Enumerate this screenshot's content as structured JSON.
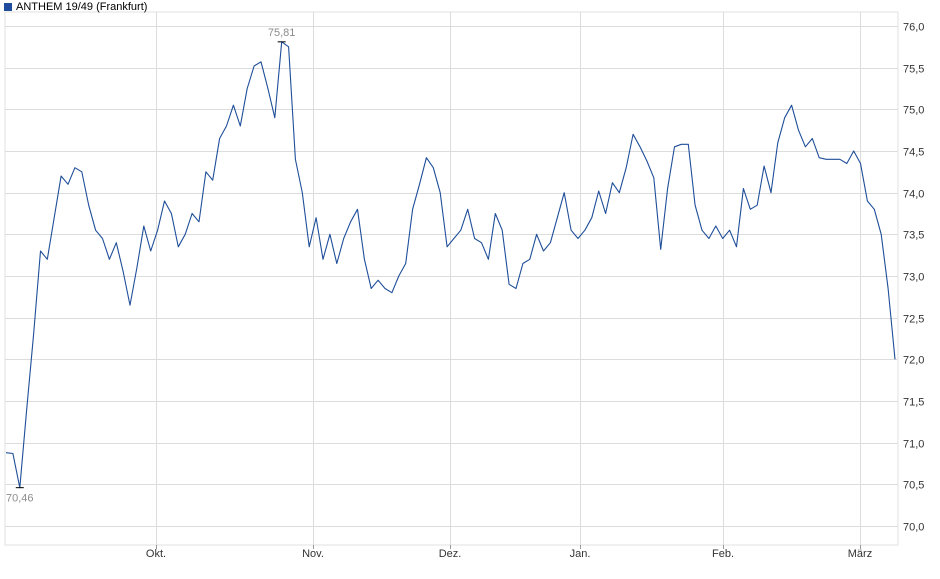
{
  "colors": {
    "line": "#1f4e99",
    "legend_swatch": "#1f4a9e",
    "grid": "#dcdcdc",
    "annotation": "#8c8c8c"
  },
  "legend": {
    "label": "ANTHEM 19/49 (Frankfurt)",
    "placement": "top-left"
  },
  "chart_data": {
    "type": "line",
    "title": "",
    "xlabel": "",
    "ylabel": "",
    "ylim": [
      70.0,
      76.0
    ],
    "y_ticks": [
      "70,0",
      "70,5",
      "71,0",
      "71,5",
      "72,0",
      "72,5",
      "73,0",
      "73,5",
      "74,0",
      "74,5",
      "75,0",
      "75,5",
      "76,0"
    ],
    "x_ticks": [
      "Okt.",
      "Nov.",
      "Dez.",
      "Jan.",
      "Feb.",
      "März"
    ],
    "grid": true,
    "y_axis_side": "right",
    "series": [
      {
        "name": "ANTHEM 19/49 (Frankfurt)",
        "values": [
          70.88,
          70.87,
          70.46,
          71.4,
          72.3,
          73.3,
          73.2,
          73.7,
          74.2,
          74.1,
          74.3,
          74.25,
          73.85,
          73.55,
          73.45,
          73.2,
          73.4,
          73.05,
          72.65,
          73.1,
          73.6,
          73.3,
          73.55,
          73.9,
          73.75,
          73.35,
          73.5,
          73.75,
          73.65,
          74.25,
          74.15,
          74.65,
          74.8,
          75.05,
          74.8,
          75.25,
          75.52,
          75.57,
          75.25,
          74.9,
          75.81,
          75.75,
          74.4,
          74.0,
          73.35,
          73.7,
          73.2,
          73.5,
          73.15,
          73.45,
          73.65,
          73.8,
          73.2,
          72.85,
          72.95,
          72.85,
          72.8,
          73.0,
          73.15,
          73.8,
          74.1,
          74.42,
          74.3,
          74.0,
          73.35,
          73.45,
          73.55,
          73.8,
          73.45,
          73.4,
          73.2,
          73.75,
          73.55,
          72.9,
          72.85,
          73.15,
          73.2,
          73.5,
          73.3,
          73.4,
          73.7,
          74.0,
          73.55,
          73.45,
          73.55,
          73.7,
          74.02,
          73.75,
          74.12,
          74.0,
          74.3,
          74.7,
          74.55,
          74.38,
          74.18,
          73.32,
          74.05,
          74.55,
          74.58,
          74.58,
          73.85,
          73.55,
          73.45,
          73.6,
          73.45,
          73.55,
          73.35,
          74.05,
          73.8,
          73.85,
          74.32,
          74.0,
          74.6,
          74.9,
          75.05,
          74.75,
          74.55,
          74.65,
          74.42,
          74.4,
          74.4,
          74.4,
          74.35,
          74.5,
          74.35,
          73.9,
          73.8,
          73.5,
          72.85,
          72.0
        ]
      }
    ],
    "annotations": [
      {
        "label": "75,81",
        "x_index": 40,
        "value": 75.81,
        "type": "max"
      },
      {
        "label": "70,46",
        "x_index": 2,
        "value": 70.46,
        "type": "min"
      }
    ]
  }
}
